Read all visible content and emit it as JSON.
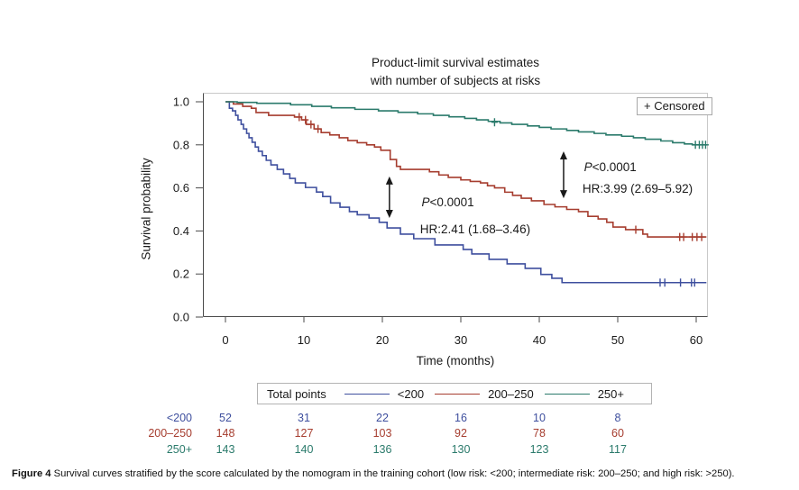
{
  "title": {
    "line1": "Product-limit survival estimates",
    "line2": "with number of subjects at risks"
  },
  "censored_legend": "+ Censored",
  "axes": {
    "y_label": "Survival probability",
    "x_label": "Time (months)"
  },
  "palette": {
    "low_risk_blue": "#3e4f9e",
    "intermediate_red": "#a63d2f",
    "high_green": "#2a7a6b",
    "frame_light": "#c9c9c9",
    "frame_dark": "#4a4a4a",
    "annotation_black": "#1a1a1a"
  },
  "legend": {
    "title": "Total points",
    "entries": [
      {
        "key": "lt200",
        "label": "<200",
        "color": "#3e4f9e"
      },
      {
        "key": "200to250",
        "label": "200–250",
        "color": "#a63d2f"
      },
      {
        "key": "gt250",
        "label": "250+",
        "color": "#2a7a6b"
      }
    ]
  },
  "chart_data": {
    "type": "line",
    "subtype": "kaplan-meier-step",
    "title": "Product-limit survival estimates with number of subjects at risks",
    "xlabel": "Time (months)",
    "ylabel": "Survival probability",
    "xlim": [
      0,
      62
    ],
    "ylim": [
      0.0,
      1.0
    ],
    "x_ticks": [
      0,
      10,
      20,
      30,
      40,
      50,
      60
    ],
    "y_ticks": [
      0.0,
      0.2,
      0.4,
      0.6,
      0.8,
      1.0
    ],
    "grid": false,
    "legend_position": "bottom",
    "censored_marker": "+",
    "series": [
      {
        "key": "lt200",
        "name": "<200",
        "color": "#3e4f9e",
        "points": [
          [
            0,
            1.0
          ],
          [
            0.5,
            0.97
          ],
          [
            0.9,
            0.958
          ],
          [
            1.3,
            0.937
          ],
          [
            1.6,
            0.916
          ],
          [
            2.0,
            0.895
          ],
          [
            2.3,
            0.874
          ],
          [
            2.7,
            0.853
          ],
          [
            3.0,
            0.833
          ],
          [
            3.4,
            0.812
          ],
          [
            3.8,
            0.79
          ],
          [
            4.2,
            0.77
          ],
          [
            4.7,
            0.75
          ],
          [
            5.2,
            0.728
          ],
          [
            5.8,
            0.707
          ],
          [
            6.6,
            0.686
          ],
          [
            7.4,
            0.665
          ],
          [
            8.2,
            0.644
          ],
          [
            8.9,
            0.623
          ],
          [
            10.2,
            0.602
          ],
          [
            11.6,
            0.581
          ],
          [
            12.4,
            0.56
          ],
          [
            13.4,
            0.53
          ],
          [
            14.6,
            0.51
          ],
          [
            15.8,
            0.49
          ],
          [
            16.8,
            0.475
          ],
          [
            18.3,
            0.46
          ],
          [
            19.6,
            0.44
          ],
          [
            20.6,
            0.414
          ],
          [
            22.3,
            0.385
          ],
          [
            24.0,
            0.364
          ],
          [
            26.7,
            0.335
          ],
          [
            30.3,
            0.314
          ],
          [
            31.4,
            0.293
          ],
          [
            33.6,
            0.268
          ],
          [
            35.9,
            0.247
          ],
          [
            38.2,
            0.226
          ],
          [
            40.2,
            0.198
          ],
          [
            41.6,
            0.18
          ],
          [
            42.9,
            0.16
          ],
          [
            61.3,
            0.16
          ]
        ],
        "censored": [
          [
            55.4,
            0.16
          ],
          [
            56.0,
            0.16
          ],
          [
            58.0,
            0.16
          ],
          [
            59.4,
            0.16
          ],
          [
            59.8,
            0.16
          ]
        ]
      },
      {
        "key": "200to250",
        "name": "200–250",
        "color": "#a63d2f",
        "points": [
          [
            0,
            1.0
          ],
          [
            1.0,
            0.99
          ],
          [
            2.2,
            0.979
          ],
          [
            3.3,
            0.97
          ],
          [
            3.9,
            0.95
          ],
          [
            5.5,
            0.937
          ],
          [
            8.8,
            0.929
          ],
          [
            9.7,
            0.916
          ],
          [
            10.3,
            0.895
          ],
          [
            11.3,
            0.874
          ],
          [
            12.2,
            0.857
          ],
          [
            13.3,
            0.846
          ],
          [
            14.5,
            0.833
          ],
          [
            15.6,
            0.82
          ],
          [
            16.8,
            0.81
          ],
          [
            18.0,
            0.8
          ],
          [
            19.0,
            0.79
          ],
          [
            19.8,
            0.775
          ],
          [
            21.0,
            0.732
          ],
          [
            21.8,
            0.7
          ],
          [
            22.3,
            0.686
          ],
          [
            26.0,
            0.675
          ],
          [
            27.2,
            0.66
          ],
          [
            28.4,
            0.649
          ],
          [
            30.0,
            0.637
          ],
          [
            31.2,
            0.63
          ],
          [
            32.5,
            0.623
          ],
          [
            33.4,
            0.61
          ],
          [
            34.3,
            0.6
          ],
          [
            35.6,
            0.58
          ],
          [
            36.6,
            0.565
          ],
          [
            37.7,
            0.552
          ],
          [
            39.0,
            0.54
          ],
          [
            40.6,
            0.523
          ],
          [
            42.0,
            0.512
          ],
          [
            43.5,
            0.5
          ],
          [
            45.0,
            0.49
          ],
          [
            46.2,
            0.468
          ],
          [
            47.5,
            0.456
          ],
          [
            48.6,
            0.44
          ],
          [
            49.4,
            0.418
          ],
          [
            51.0,
            0.406
          ],
          [
            53.2,
            0.385
          ],
          [
            53.8,
            0.372
          ],
          [
            61.3,
            0.372
          ]
        ],
        "censored": [
          [
            9.4,
            0.929
          ],
          [
            10.2,
            0.916
          ],
          [
            10.9,
            0.895
          ],
          [
            11.8,
            0.874
          ],
          [
            52.3,
            0.406
          ],
          [
            57.9,
            0.372
          ],
          [
            58.4,
            0.372
          ],
          [
            59.5,
            0.372
          ],
          [
            60.1,
            0.372
          ],
          [
            60.7,
            0.372
          ]
        ]
      },
      {
        "key": "gt250",
        "name": "250+",
        "color": "#2a7a6b",
        "points": [
          [
            0,
            1.0
          ],
          [
            1.5,
            0.997
          ],
          [
            4.0,
            0.993
          ],
          [
            8.3,
            0.986
          ],
          [
            11.0,
            0.979
          ],
          [
            13.5,
            0.972
          ],
          [
            16.5,
            0.965
          ],
          [
            19.5,
            0.958
          ],
          [
            22.0,
            0.951
          ],
          [
            24.5,
            0.944
          ],
          [
            26.5,
            0.937
          ],
          [
            28.5,
            0.93
          ],
          [
            30.5,
            0.923
          ],
          [
            32.0,
            0.916
          ],
          [
            33.5,
            0.909
          ],
          [
            35.0,
            0.902
          ],
          [
            36.5,
            0.895
          ],
          [
            38.5,
            0.888
          ],
          [
            40.0,
            0.881
          ],
          [
            41.5,
            0.874
          ],
          [
            43.5,
            0.867
          ],
          [
            45.0,
            0.86
          ],
          [
            47.0,
            0.853
          ],
          [
            48.5,
            0.846
          ],
          [
            50.5,
            0.84
          ],
          [
            52.0,
            0.833
          ],
          [
            53.5,
            0.826
          ],
          [
            55.5,
            0.818
          ],
          [
            57.0,
            0.81
          ],
          [
            58.5,
            0.804
          ],
          [
            59.5,
            0.8
          ],
          [
            61.4,
            0.8
          ]
        ],
        "censored": [
          [
            34.3,
            0.905
          ],
          [
            59.9,
            0.8
          ],
          [
            60.4,
            0.8
          ],
          [
            60.8,
            0.8
          ],
          [
            61.2,
            0.8
          ]
        ]
      }
    ],
    "annotations": [
      {
        "type": "text",
        "text": "P<0.0001",
        "x": 25.0,
        "y": 0.515
      },
      {
        "type": "text",
        "text": "HR:2.41 (1.68–3.46)",
        "x": 24.8,
        "y": 0.389
      },
      {
        "type": "text",
        "text": "P<0.0001",
        "x": 45.7,
        "y": 0.678
      },
      {
        "type": "text",
        "text": "HR:3.99 (2.69–5.92)",
        "x": 45.5,
        "y": 0.577
      },
      {
        "type": "double_arrow",
        "x": 20.9,
        "y_top": 0.653,
        "y_bottom": 0.46
      },
      {
        "type": "double_arrow",
        "x": 43.1,
        "y_top": 0.77,
        "y_bottom": 0.552
      }
    ]
  },
  "risk_table": {
    "columns_time": [
      0,
      10,
      20,
      30,
      40,
      50
    ],
    "rows": [
      {
        "key": "lt200",
        "label": "<200",
        "color": "#3e4f9e",
        "counts": [
          52,
          31,
          22,
          16,
          10,
          8
        ]
      },
      {
        "key": "200to250",
        "label": "200–250",
        "color": "#a63d2f",
        "counts": [
          148,
          127,
          103,
          92,
          78,
          60
        ]
      },
      {
        "key": "gt250",
        "label": "250+",
        "color": "#2a7a6b",
        "counts": [
          143,
          140,
          136,
          130,
          123,
          117
        ]
      }
    ]
  },
  "caption": {
    "label": "Figure 4",
    "text": " Survival curves stratified by the score calculated by the nomogram in the training cohort (low risk: <200; intermediate risk: 200–250; and high risk: >250)."
  }
}
